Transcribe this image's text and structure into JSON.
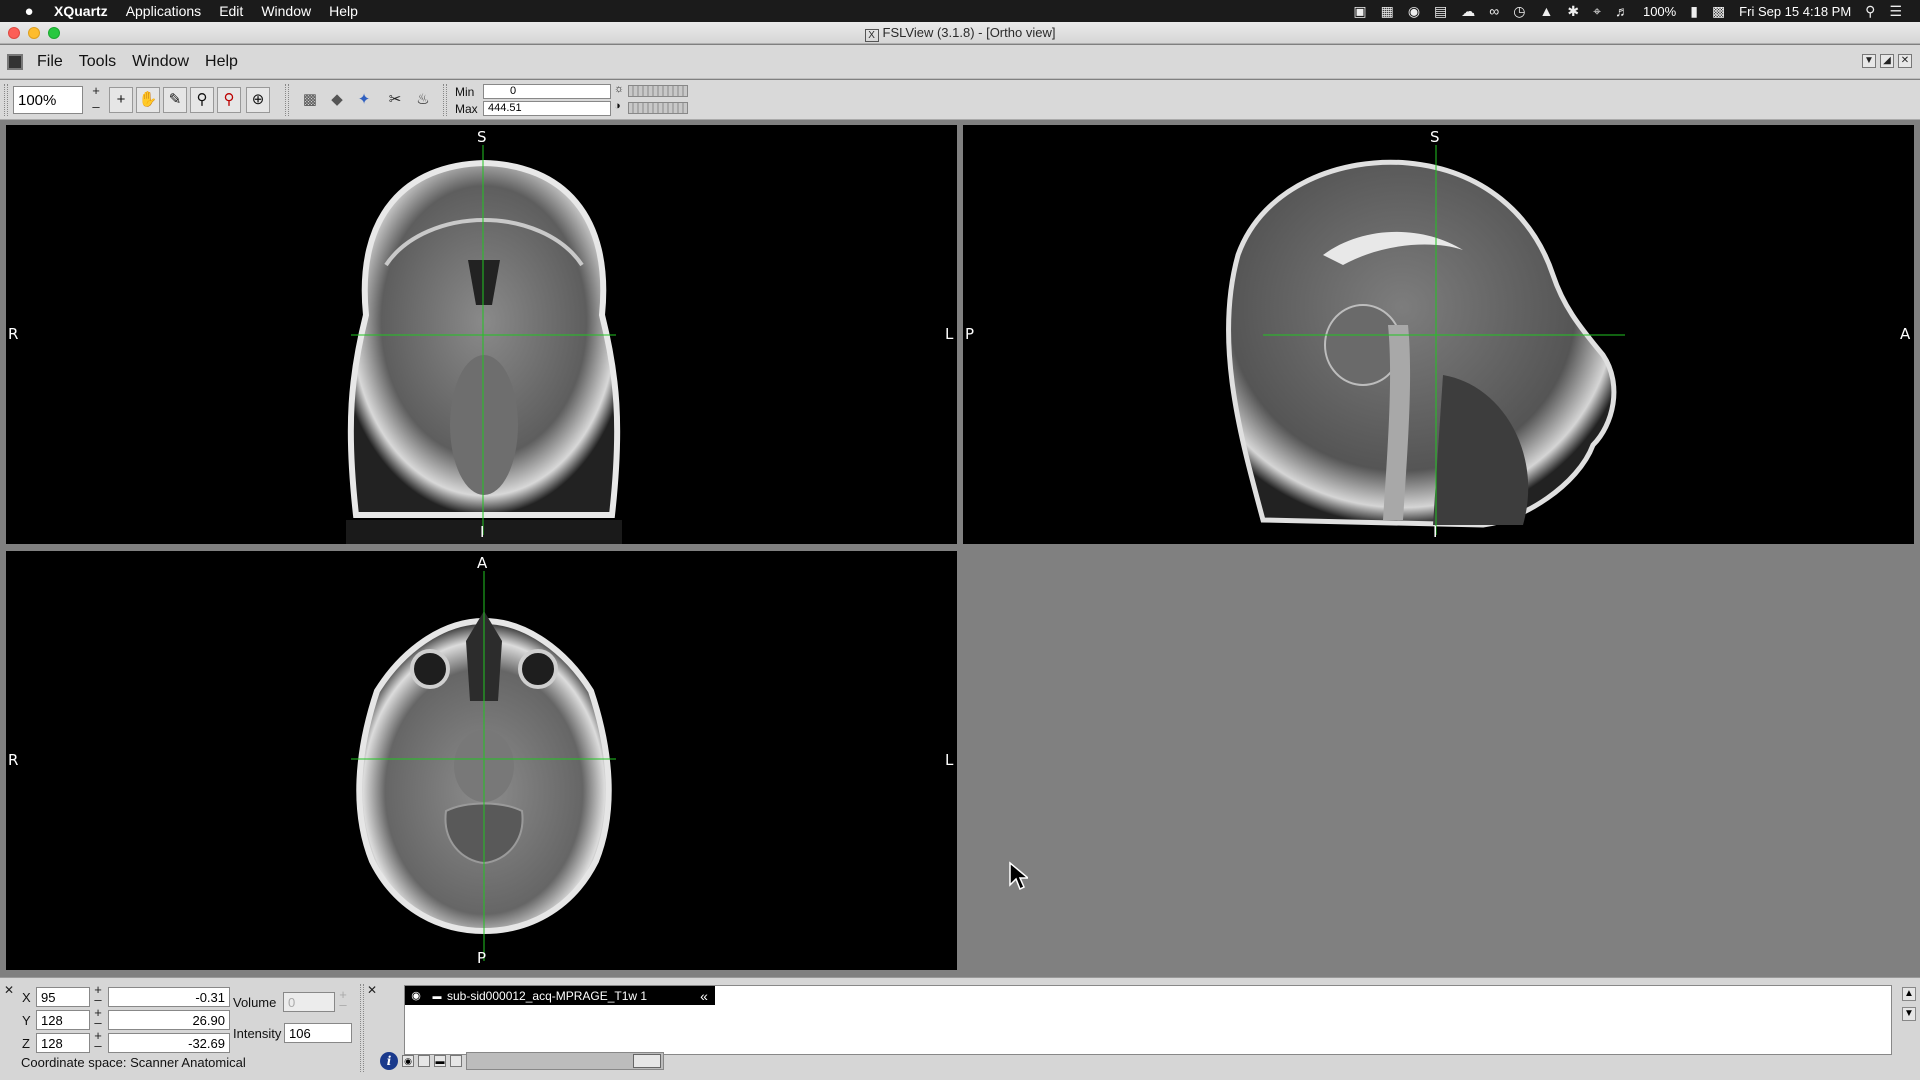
{
  "macbar": {
    "apple": "",
    "app_name": "XQuartz",
    "menus": [
      "Applications",
      "Edit",
      "Window",
      "Help"
    ],
    "battery": "100%",
    "datetime": "Fri Sep 15  4:18 PM"
  },
  "window": {
    "title": "FSLView (3.1.8) - [Ortho view]",
    "x_icon": "X"
  },
  "app_menu": [
    "File",
    "Tools",
    "Window",
    "Help"
  ],
  "toolbar": {
    "zoom": "100%",
    "min_label": "Min",
    "min_value": "0",
    "max_label": "Max",
    "max_value": "444.51"
  },
  "views": {
    "coronal": {
      "top": "S",
      "bottom": "I",
      "left": "R",
      "right": "L"
    },
    "sagittal": {
      "top": "S",
      "bottom": "I",
      "left": "P",
      "right": "A"
    },
    "axial": {
      "top": "A",
      "bottom": "P",
      "left": "R",
      "right": "L"
    }
  },
  "cursor_panel": {
    "x_label": "X",
    "x_voxel": "95",
    "x_world": "-0.31",
    "y_label": "Y",
    "y_voxel": "128",
    "y_world": "26.90",
    "z_label": "Z",
    "z_voxel": "128",
    "z_world": "-32.69",
    "volume_label": "Volume",
    "volume_value": "0",
    "intensity_label": "Intensity",
    "intensity_value": "106",
    "coord_space": "Coordinate space: Scanner Anatomical"
  },
  "layers": {
    "items": [
      {
        "name": "sub-sid000012_acq-MPRAGE_T1w 1"
      }
    ]
  },
  "colors": {
    "crosshair": "#22c422",
    "background": "#808080",
    "viewport": "#000000"
  }
}
